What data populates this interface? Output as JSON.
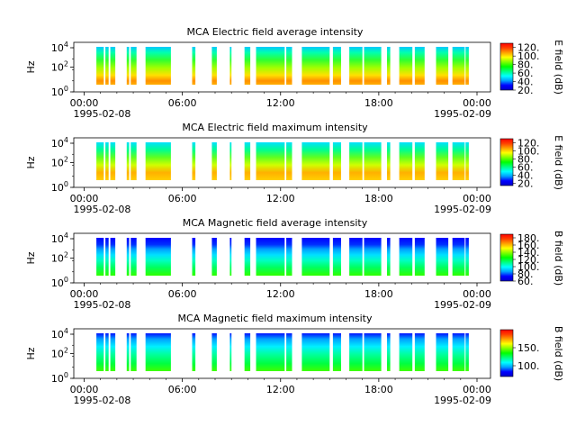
{
  "chart_data": [
    {
      "type": "heatmap",
      "title": "MCA  Electric field average intensity",
      "ylabel": "Hz",
      "xlabel": "",
      "x_ticks": [
        "00:00",
        "06:00",
        "12:00",
        "18:00",
        "00:00"
      ],
      "x_dates": [
        "1995-02-08",
        "1995-02-09"
      ],
      "y_ticks": [
        "0",
        "2",
        "4"
      ],
      "y_scale": "log",
      "colorbar": {
        "label": "E field (dB)",
        "min": 20,
        "max": 130,
        "ticks": [
          "20.",
          "40.",
          "60.",
          "80.",
          "100.",
          "120."
        ]
      }
    },
    {
      "type": "heatmap",
      "title": "MCA  Electric field maximum intensity",
      "ylabel": "Hz",
      "xlabel": "",
      "x_ticks": [
        "00:00",
        "06:00",
        "12:00",
        "18:00",
        "00:00"
      ],
      "x_dates": [
        "1995-02-08",
        "1995-02-09"
      ],
      "y_ticks": [
        "0",
        "2",
        "4"
      ],
      "y_scale": "log",
      "colorbar": {
        "label": "E field (dB)",
        "min": 15,
        "max": 130,
        "ticks": [
          "20.",
          "40.",
          "60.",
          "80.",
          "100.",
          "120."
        ]
      }
    },
    {
      "type": "heatmap",
      "title": "MCA  Magnetic field average intensity",
      "ylabel": "Hz",
      "xlabel": "",
      "x_ticks": [
        "00:00",
        "06:00",
        "12:00",
        "18:00",
        "00:00"
      ],
      "x_dates": [
        "1995-02-08",
        "1995-02-09"
      ],
      "y_ticks": [
        "0",
        "2",
        "4"
      ],
      "y_scale": "log",
      "colorbar": {
        "label": "B field (dB)",
        "min": 60,
        "max": 190,
        "ticks": [
          "60.",
          "80.",
          "100.",
          "120.",
          "140.",
          "160.",
          "180."
        ]
      }
    },
    {
      "type": "heatmap",
      "title": "MCA  Magnetic field maximum intensity",
      "ylabel": "Hz",
      "xlabel": "",
      "x_ticks": [
        "00:00",
        "06:00",
        "12:00",
        "18:00",
        "00:00"
      ],
      "x_dates": [
        "1995-02-08",
        "1995-02-09"
      ],
      "y_ticks": [
        "0",
        "2",
        "4"
      ],
      "y_scale": "log",
      "colorbar": {
        "label": "B field (dB)",
        "min": 70,
        "max": 200,
        "ticks": [
          "100.",
          "150."
        ]
      }
    }
  ],
  "data_segments_hours": [
    [
      0.75,
      1.2
    ],
    [
      1.3,
      1.5
    ],
    [
      1.6,
      1.9
    ],
    [
      2.6,
      2.75
    ],
    [
      2.85,
      3.2
    ],
    [
      3.75,
      5.3
    ],
    [
      6.6,
      6.8
    ],
    [
      7.8,
      8.1
    ],
    [
      8.9,
      9.0
    ],
    [
      9.8,
      10.15
    ],
    [
      10.5,
      12.25
    ],
    [
      12.35,
      12.7
    ],
    [
      13.3,
      15.0
    ],
    [
      15.2,
      15.7
    ],
    [
      16.2,
      17.0
    ],
    [
      17.1,
      18.15
    ],
    [
      18.5,
      18.7
    ],
    [
      19.25,
      20.05
    ],
    [
      20.2,
      20.8
    ],
    [
      21.5,
      22.25
    ],
    [
      22.5,
      23.25
    ],
    [
      23.3,
      23.5
    ]
  ],
  "colors": {
    "colormap": [
      "#0000c8",
      "#0000ff",
      "#00a0ff",
      "#00ffff",
      "#00ff80",
      "#00ff00",
      "#80ff00",
      "#ffff00",
      "#ffa000",
      "#ff4000",
      "#ff0000"
    ]
  }
}
